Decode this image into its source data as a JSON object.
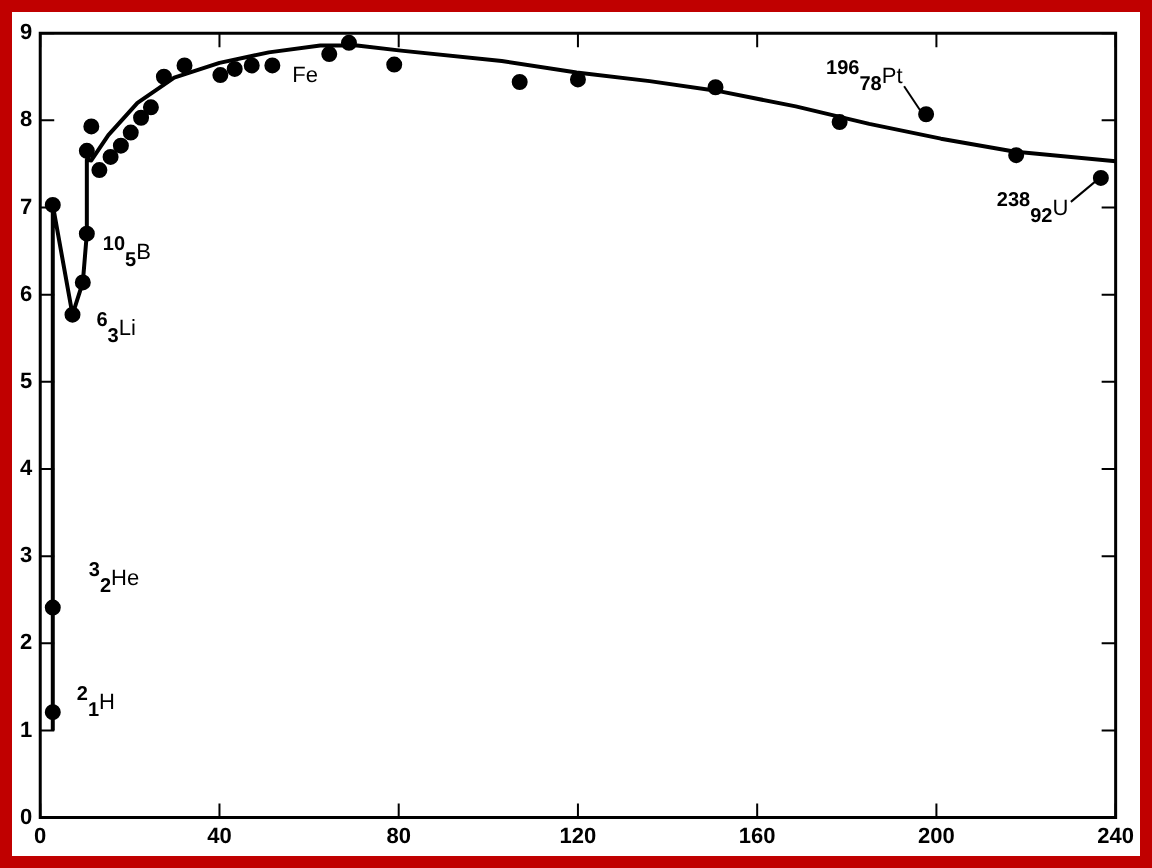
{
  "chart_data": {
    "type": "scatter",
    "xlim": [
      0,
      240
    ],
    "ylim": [
      0,
      9
    ],
    "xticks": [
      0,
      40,
      80,
      120,
      160,
      200,
      240
    ],
    "yticks": [
      0,
      1,
      2,
      3,
      4,
      5,
      6,
      7,
      8,
      9
    ],
    "grid": false,
    "legend": false,
    "marker": "circle",
    "series": [
      {
        "color": "#000000",
        "x": [
          2.8,
          2.8,
          2.8,
          7.2,
          9.5,
          10.4,
          10.4,
          11.4,
          13.2,
          15.7,
          18,
          20.2,
          22.5,
          24.7,
          27.6,
          32.2,
          40.2,
          43.4,
          47.2,
          51.8,
          64.5,
          68.9,
          79,
          107,
          120,
          150.7,
          178.4,
          197.7,
          217.8,
          236.7
        ],
        "values": [
          1.21,
          2.41,
          7.03,
          5.77,
          6.14,
          6.7,
          7.65,
          7.93,
          7.43,
          7.58,
          7.71,
          7.86,
          8.03,
          8.15,
          8.5,
          8.63,
          8.52,
          8.59,
          8.63,
          8.63,
          8.76,
          8.89,
          8.64,
          8.44,
          8.47,
          8.38,
          7.98,
          8.07,
          7.6,
          7.34
        ]
      },
      {
        "type": "line",
        "color": "#000000",
        "marker": "none",
        "x": [
          2.8,
          2.8,
          7.2,
          9.5,
          10.4,
          10.4,
          11.4,
          15.2,
          21.7,
          29.9,
          40,
          51,
          62.5,
          70.7,
          80.5,
          103,
          119.7,
          136,
          152,
          168.6,
          185,
          201,
          217.6,
          240
        ],
        "values": [
          1.0,
          7.03,
          5.77,
          6.14,
          6.7,
          7.55,
          7.54,
          7.83,
          8.2,
          8.49,
          8.66,
          8.78,
          8.86,
          8.86,
          8.8,
          8.68,
          8.55,
          8.45,
          8.33,
          8.16,
          7.96,
          7.79,
          7.64,
          7.53
        ]
      }
    ],
    "annotations": [
      {
        "text": "$^{2}$$_{1}$H",
        "x": 2.8,
        "y": 1.21
      },
      {
        "text": "$^{3}$$_{2}$He",
        "x": 2.8,
        "y": 2.41
      },
      {
        "text": "$^{6}$$_{3}$Li",
        "x": 7.2,
        "y": 5.77
      },
      {
        "text": "$^{10}$$_{5}$B",
        "x": 10.4,
        "y": 6.7
      },
      {
        "text": "Fe",
        "x": 51.8,
        "y": 8.63
      },
      {
        "text": "$^{196}$$_{78}$Pt",
        "x": 197.7,
        "y": 8.07
      },
      {
        "text": "$^{238}$$_{92}$U",
        "x": 236.7,
        "y": 7.34
      }
    ]
  }
}
